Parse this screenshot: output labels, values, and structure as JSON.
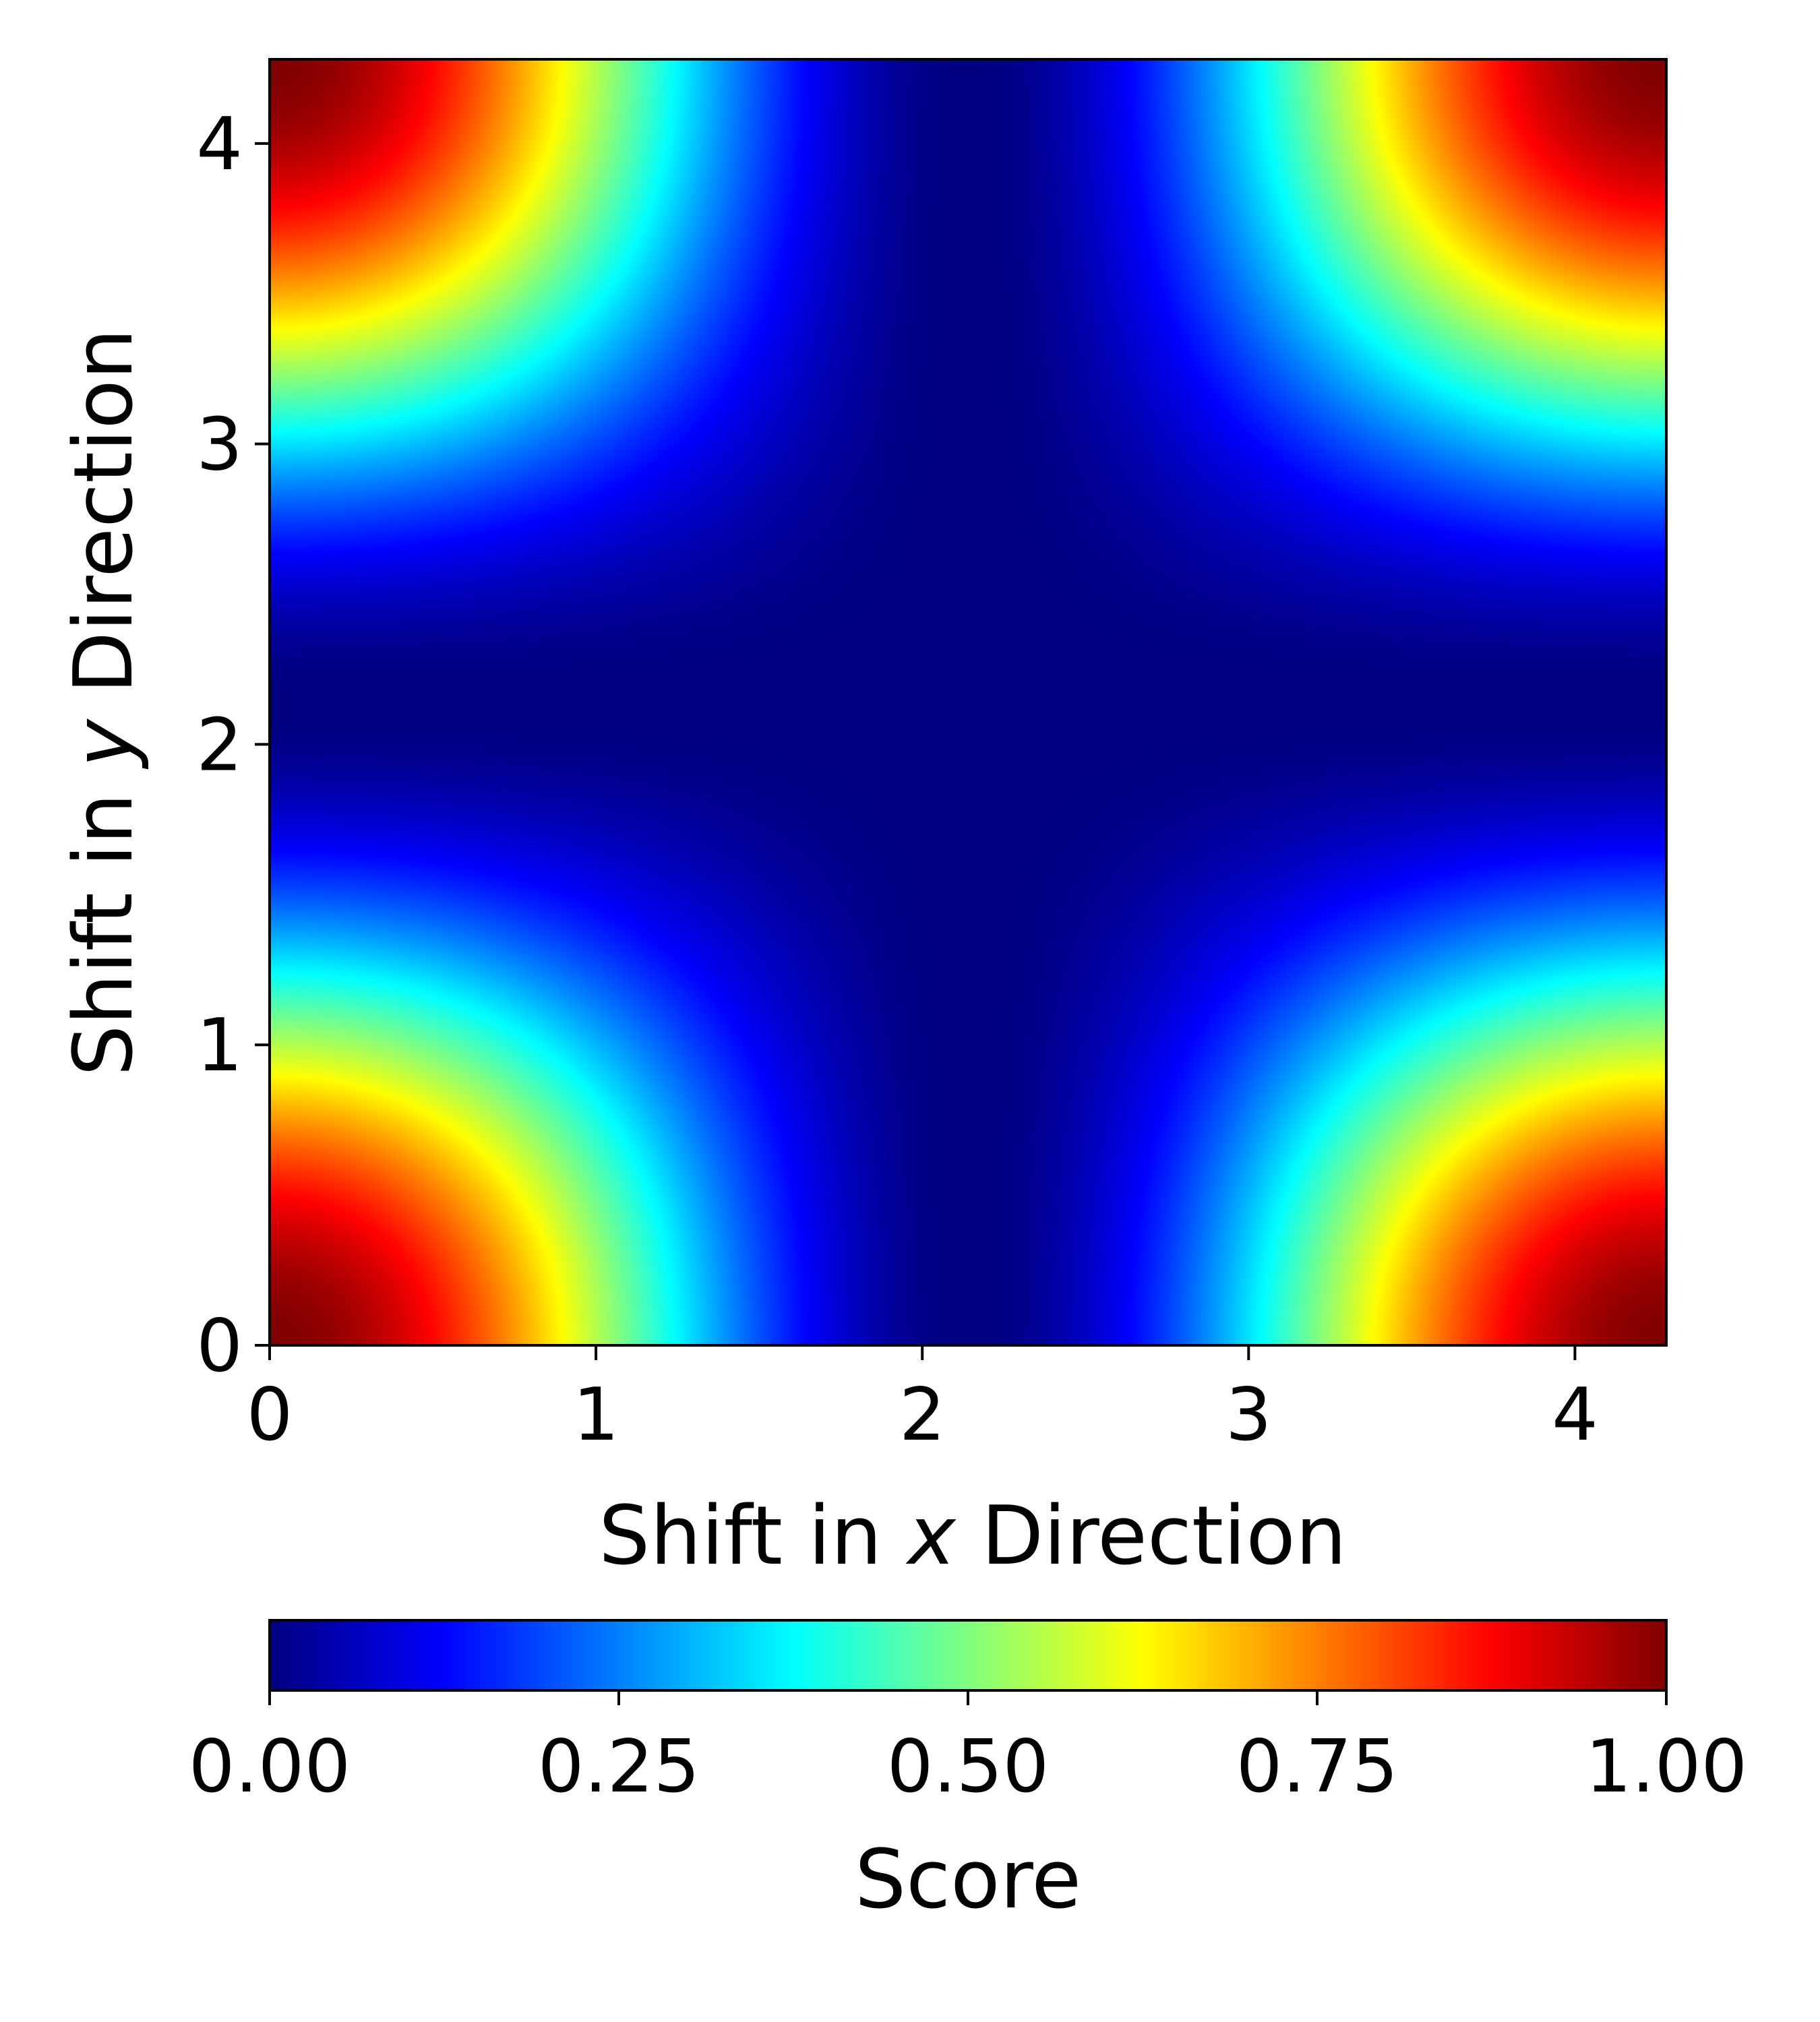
{
  "chart_data": {
    "type": "heatmap",
    "x": {
      "label_prefix": "Shift in ",
      "label_var": "x",
      "label_suffix": " Direction",
      "range": [
        0,
        4.28
      ],
      "ticks": [
        "0",
        "1",
        "2",
        "3",
        "4"
      ]
    },
    "y": {
      "label_prefix": "Shift in ",
      "label_var": "y",
      "label_suffix": " Direction",
      "range": [
        0,
        4.28
      ],
      "ticks": [
        "0",
        "1",
        "2",
        "3",
        "4"
      ]
    },
    "score_function": {
      "description_of_values": "score = ((1+cos(pi*x/2.14))/2) * ((1+cos(pi*y/2.14))/2); maxima (1.0) at the four corners, minimum (0.0) across the central band",
      "period": 4.28
    },
    "colormap": "jet",
    "colorbar": {
      "label": "Score",
      "range": [
        0,
        1
      ],
      "ticks": [
        "0.00",
        "0.25",
        "0.50",
        "0.75",
        "1.00"
      ],
      "orientation": "horizontal",
      "placement": "bottom"
    }
  }
}
